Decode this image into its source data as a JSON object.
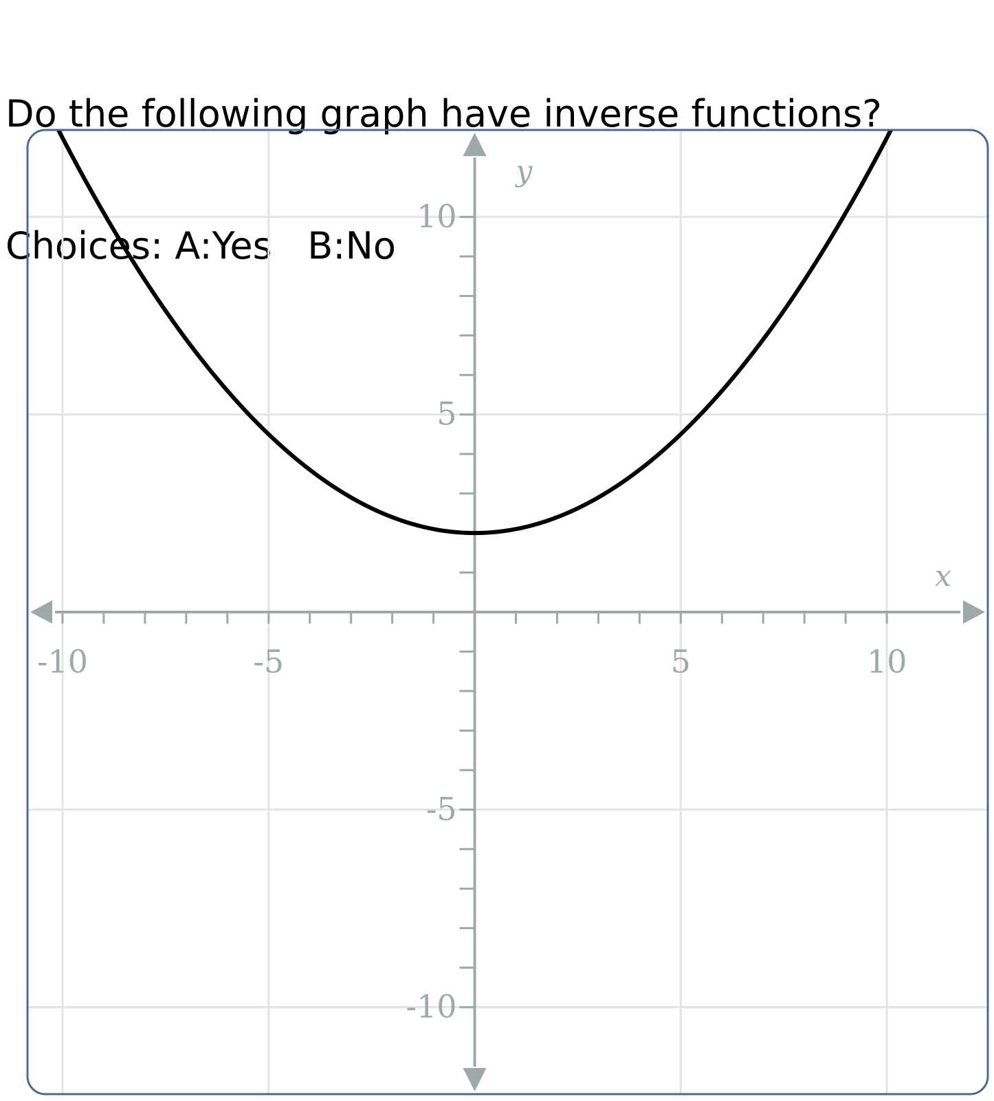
{
  "question": {
    "prompt": "Do the following graph have inverse functions?",
    "choices_line": "Choices: A:Yes   B:No"
  },
  "chart_data": {
    "type": "line",
    "title": "",
    "xlabel": "x",
    "ylabel": "y",
    "xlim": [
      -10.85,
      12.45
    ],
    "ylim": [
      -12.2,
      12.2
    ],
    "grid": true,
    "x_ticks": [
      -10,
      -5,
      5,
      10
    ],
    "y_ticks": [
      -10,
      -5,
      5,
      10
    ],
    "minor_tick_step": 1,
    "series": [
      {
        "color": "#000000",
        "function": "y = 0.1 * x^2 + 2",
        "x": [
          -10,
          -9,
          -8,
          -7,
          -6,
          -5,
          -4,
          -3,
          -2,
          -1,
          0,
          1,
          2,
          3,
          4,
          5,
          6,
          7,
          8,
          9,
          10
        ],
        "y": [
          12,
          10.1,
          8.4,
          6.9,
          5.6,
          4.5,
          3.6,
          2.9,
          2.4,
          2.1,
          2,
          2.1,
          2.4,
          2.9,
          3.6,
          4.5,
          5.6,
          6.9,
          8.4,
          10.1,
          12
        ]
      }
    ],
    "colors": {
      "frame": "#4e6a8a",
      "grid": "#e3e5e5",
      "axis": "#9fa9a9",
      "curve": "#000000"
    }
  }
}
